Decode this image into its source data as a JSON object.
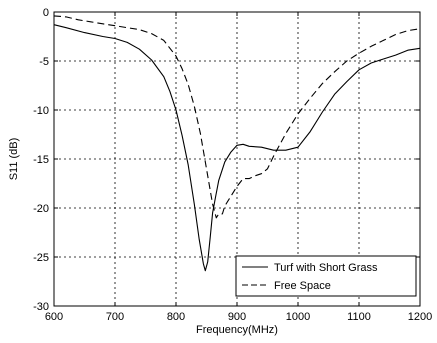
{
  "chart_data": {
    "type": "line",
    "title": "",
    "xlabel": "Frequency(MHz)",
    "ylabel": "S11 (dB)",
    "xlim": [
      600,
      1200
    ],
    "ylim": [
      -30,
      0
    ],
    "grid": true,
    "x_ticks": [
      "600",
      "700",
      "800",
      "900",
      "1000",
      "1100",
      "1200"
    ],
    "y_ticks": [
      "0",
      "-5",
      "-10",
      "-15",
      "-20",
      "-25",
      "-30"
    ],
    "legend_position": "bottom-right",
    "series": [
      {
        "name": "Turf with Short Grass",
        "style": "solid",
        "x": [
          600,
          620,
          650,
          680,
          700,
          720,
          740,
          760,
          780,
          790,
          800,
          810,
          820,
          830,
          838,
          845,
          848,
          852,
          856,
          860,
          865,
          870,
          880,
          890,
          900,
          910,
          920,
          940,
          960,
          980,
          1000,
          1020,
          1040,
          1060,
          1080,
          1100,
          1120,
          1140,
          1160,
          1180,
          1200
        ],
        "y": [
          -1.3,
          -1.6,
          -2.1,
          -2.5,
          -2.7,
          -3.1,
          -3.8,
          -4.9,
          -6.6,
          -8.1,
          -10.0,
          -12.6,
          -15.6,
          -19.6,
          -23.2,
          -25.7,
          -26.4,
          -25.5,
          -23.0,
          -20.5,
          -18.8,
          -17.2,
          -15.3,
          -14.3,
          -13.6,
          -13.5,
          -13.7,
          -13.8,
          -14.1,
          -14.1,
          -13.8,
          -12.2,
          -10.2,
          -8.4,
          -7.1,
          -5.9,
          -5.2,
          -4.8,
          -4.4,
          -3.9,
          -3.7
        ]
      },
      {
        "name": "Free Space",
        "style": "dashed",
        "x": [
          600,
          620,
          640,
          660,
          680,
          700,
          720,
          740,
          760,
          780,
          800,
          810,
          820,
          830,
          840,
          850,
          860,
          866,
          870,
          876,
          880,
          890,
          900,
          910,
          920,
          930,
          940,
          950,
          960,
          980,
          1000,
          1020,
          1040,
          1060,
          1080,
          1100,
          1120,
          1140,
          1160,
          1180,
          1200
        ],
        "y": [
          -0.4,
          -0.5,
          -0.8,
          -1.0,
          -1.2,
          -1.4,
          -1.6,
          -1.8,
          -2.2,
          -2.9,
          -4.5,
          -5.8,
          -7.4,
          -9.6,
          -12.4,
          -16.0,
          -19.6,
          -21.0,
          -20.6,
          -20.6,
          -19.8,
          -18.8,
          -17.8,
          -17.0,
          -17.0,
          -16.7,
          -16.5,
          -16.0,
          -14.7,
          -12.4,
          -10.4,
          -8.8,
          -7.3,
          -6.1,
          -5.0,
          -4.2,
          -3.5,
          -2.9,
          -2.3,
          -1.9,
          -1.7
        ]
      }
    ]
  }
}
